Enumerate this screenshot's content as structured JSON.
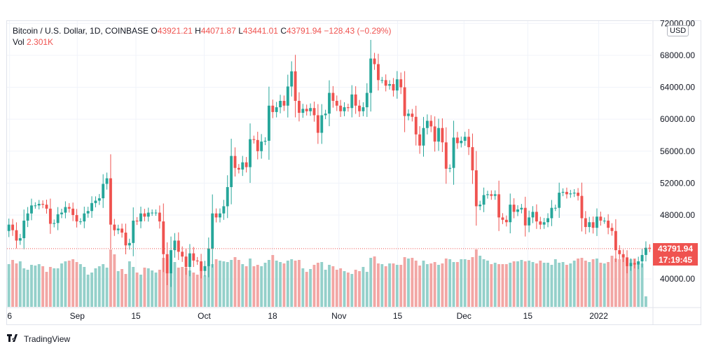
{
  "legend": {
    "symbol": "Bitcoin / U.S. Dollar, 1D, COINBASE",
    "o_label": "O",
    "o_value": "43921.21",
    "h_label": "H",
    "h_value": "44071.87",
    "l_label": "L",
    "l_value": "43441.01",
    "c_label": "C",
    "c_value": "43791.94",
    "change": "−128.43 (−0.29%)",
    "vol_label": "Vol",
    "vol_value": "2.301K"
  },
  "currency_badge": "USD",
  "last_price": "43791.94",
  "countdown": "17:19:45",
  "branding": "TradingView",
  "colors": {
    "up": "#26a69a",
    "down": "#ef5350",
    "up_vol": "#94d0ca",
    "down_vol": "#f2a6a4",
    "grid": "#f0f3fa",
    "text": "#131722"
  },
  "chart_data": {
    "type": "candlestick",
    "title": "Bitcoin / U.S. Dollar, 1D, COINBASE",
    "y_axis": {
      "ticks": [
        72000,
        68000,
        64000,
        60000,
        56000,
        52000,
        48000,
        40000
      ],
      "tick_labels": [
        "72000.00",
        "68000.00",
        "64000.00",
        "60000.00",
        "56000.00",
        "52000.00",
        "48000.00",
        "40000.00"
      ],
      "range": [
        36500,
        72300
      ],
      "side": "right"
    },
    "x_axis": {
      "tick_labels": [
        "6",
        "Sep",
        "15",
        "Oct",
        "18",
        "Nov",
        "15",
        "Dec",
        "15",
        "2022"
      ]
    },
    "grid": true,
    "closes": [
      46800,
      46100,
      44800,
      45100,
      47300,
      48200,
      49200,
      49200,
      49400,
      49300,
      48800,
      46900,
      47000,
      48100,
      48300,
      49000,
      48800,
      48000,
      47200,
      47200,
      48200,
      48500,
      49500,
      49800,
      50100,
      51900,
      52600,
      46800,
      46100,
      46300,
      45800,
      44200,
      44500,
      47300,
      47200,
      48200,
      47800,
      48300,
      48300,
      48300,
      47200,
      43100,
      40700,
      43600,
      44800,
      43400,
      42800,
      41500,
      43200,
      42300,
      42200,
      41000,
      41600,
      43800,
      48200,
      47700,
      48200,
      49100,
      51500,
      55400,
      53900,
      53700,
      54600,
      54000,
      57500,
      57400,
      56000,
      57200,
      57300,
      61700,
      60900,
      61500,
      62300,
      61700,
      64100,
      66000,
      62300,
      60800,
      61300,
      61000,
      61400,
      60500,
      58300,
      60500,
      60700,
      63300,
      62300,
      61700,
      61000,
      61500,
      61400,
      63100,
      61700,
      61000,
      61500,
      63300,
      67600,
      66900,
      64900,
      64900,
      64200,
      64400,
      63600,
      65000,
      64000,
      60400,
      60700,
      60300,
      58100,
      56700,
      58900,
      59800,
      59100,
      57200,
      58900,
      57100,
      53800,
      53900,
      57700,
      57000,
      57300,
      57800,
      56500,
      53600,
      49100,
      49300,
      50500,
      50600,
      50400,
      50600,
      47700,
      47400,
      47100,
      49300,
      48400,
      48700,
      48900,
      46700,
      47700,
      48400,
      47200,
      46800,
      47100,
      47600,
      48900,
      48900,
      50800,
      50900,
      50600,
      50700,
      50800,
      50400,
      47600,
      46500,
      47100,
      46400,
      47800,
      47300,
      47300,
      46400,
      46000,
      43600,
      43100,
      42700,
      41600,
      42000,
      41800,
      42200,
      43000,
      43900,
      43800
    ],
    "volumes": [
      0.61,
      0.67,
      0.62,
      0.65,
      0.55,
      0.53,
      0.6,
      0.59,
      0.61,
      0.58,
      0.5,
      0.57,
      0.55,
      0.55,
      0.62,
      0.65,
      0.66,
      0.68,
      0.64,
      0.61,
      0.57,
      0.46,
      0.49,
      0.55,
      0.58,
      0.61,
      0.56,
      0.82,
      0.75,
      0.51,
      0.54,
      0.47,
      0.65,
      0.57,
      0.49,
      0.46,
      0.56,
      0.55,
      0.52,
      0.49,
      0.53,
      0.7,
      0.69,
      0.68,
      0.64,
      0.56,
      0.57,
      0.56,
      0.52,
      0.49,
      0.46,
      0.52,
      0.45,
      0.59,
      0.61,
      0.68,
      0.66,
      0.65,
      0.64,
      0.67,
      0.71,
      0.67,
      0.61,
      0.58,
      0.69,
      0.58,
      0.6,
      0.58,
      0.63,
      0.67,
      0.74,
      0.66,
      0.64,
      0.62,
      0.66,
      0.68,
      0.66,
      0.67,
      0.55,
      0.5,
      0.54,
      0.6,
      0.63,
      0.64,
      0.53,
      0.6,
      0.58,
      0.53,
      0.55,
      0.51,
      0.49,
      0.47,
      0.53,
      0.51,
      0.57,
      0.5,
      0.7,
      0.72,
      0.62,
      0.61,
      0.58,
      0.62,
      0.62,
      0.6,
      0.6,
      0.71,
      0.69,
      0.7,
      0.66,
      0.59,
      0.66,
      0.61,
      0.62,
      0.64,
      0.6,
      0.62,
      0.69,
      0.68,
      0.64,
      0.64,
      0.68,
      0.68,
      0.67,
      0.71,
      0.82,
      0.73,
      0.68,
      0.66,
      0.61,
      0.63,
      0.61,
      0.61,
      0.61,
      0.63,
      0.65,
      0.65,
      0.67,
      0.65,
      0.66,
      0.64,
      0.62,
      0.66,
      0.63,
      0.63,
      0.6,
      0.68,
      0.63,
      0.64,
      0.6,
      0.62,
      0.66,
      0.69,
      0.7,
      0.66,
      0.64,
      0.68,
      0.69,
      0.63,
      0.62,
      0.64,
      0.73,
      0.69,
      0.68,
      0.75,
      0.68,
      0.68,
      0.69,
      0.65,
      0.62,
      0.15
    ],
    "last_close": 43791.94
  }
}
